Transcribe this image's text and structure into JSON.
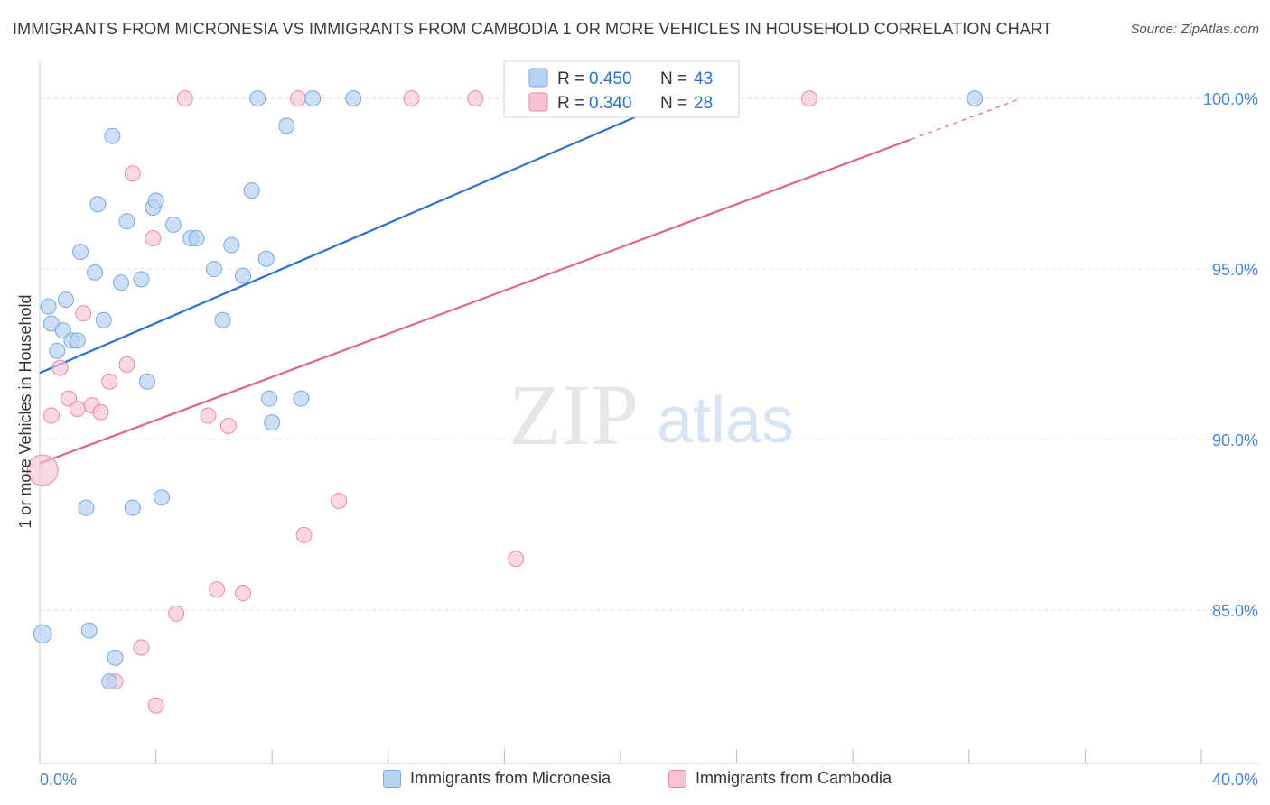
{
  "title": "IMMIGRANTS FROM MICRONESIA VS IMMIGRANTS FROM CAMBODIA 1 OR MORE VEHICLES IN HOUSEHOLD CORRELATION CHART",
  "source": "Source: ZipAtlas.com",
  "watermark": {
    "zip": "ZIP",
    "atlas": "atlas"
  },
  "colors": {
    "blue_fill": "#b8d2f2",
    "blue_stroke": "#7aa8dd",
    "blue_line": "#2a72cc",
    "pink_fill": "#f7c3d4",
    "pink_stroke": "#e88aa8",
    "pink_line": "#e0628c",
    "axis_text": "#4a86cf",
    "grid": "#dddddd"
  },
  "legend": {
    "items": [
      {
        "r_label": "R = ",
        "r_value": "0.450",
        "n_label": "N = ",
        "n_value": "43"
      },
      {
        "r_label": "R = ",
        "r_value": "0.340",
        "n_label": "N = ",
        "n_value": "28"
      }
    ]
  },
  "bottom_legend": [
    "Immigrants from Micronesia",
    "Immigrants from Cambodia"
  ],
  "chart_data": {
    "type": "scatter",
    "title": "IMMIGRANTS FROM MICRONESIA VS IMMIGRANTS FROM CAMBODIA 1 OR MORE VEHICLES IN HOUSEHOLD CORRELATION CHART",
    "xlabel": "",
    "ylabel": "1 or more Vehicles in Household",
    "xlim": [
      0,
      40
    ],
    "ylim": [
      80.5,
      101.3
    ],
    "x_tick_labels": [
      "0.0%",
      "40.0%"
    ],
    "y_ticks": [
      85,
      90,
      95,
      100
    ],
    "y_tick_labels": [
      "85.0%",
      "90.0%",
      "95.0%",
      "100.0%"
    ],
    "grid": true,
    "legend_position": "top-center",
    "series": [
      {
        "name": "Immigrants from Micronesia",
        "r": 0.45,
        "n": 43,
        "trend": {
          "x": [
            0,
            22.0
          ],
          "y": [
            91.95,
            100.0
          ]
        },
        "points": [
          [
            0.1,
            84.3
          ],
          [
            0.3,
            93.9
          ],
          [
            0.4,
            93.4
          ],
          [
            0.6,
            92.6
          ],
          [
            0.8,
            93.2
          ],
          [
            0.9,
            94.1
          ],
          [
            1.1,
            92.9
          ],
          [
            1.3,
            92.9
          ],
          [
            1.4,
            95.5
          ],
          [
            1.6,
            88.0
          ],
          [
            1.7,
            84.4
          ],
          [
            1.9,
            94.9
          ],
          [
            2.0,
            96.9
          ],
          [
            2.2,
            93.5
          ],
          [
            2.4,
            82.9
          ],
          [
            2.5,
            98.9
          ],
          [
            2.6,
            83.6
          ],
          [
            2.8,
            94.6
          ],
          [
            3.0,
            96.4
          ],
          [
            3.2,
            88.0
          ],
          [
            3.5,
            94.7
          ],
          [
            3.7,
            91.7
          ],
          [
            3.9,
            96.8
          ],
          [
            4.0,
            97.0
          ],
          [
            4.2,
            88.3
          ],
          [
            4.6,
            96.3
          ],
          [
            5.2,
            95.9
          ],
          [
            5.4,
            95.9
          ],
          [
            6.0,
            95.0
          ],
          [
            6.3,
            93.5
          ],
          [
            6.6,
            95.7
          ],
          [
            7.0,
            94.8
          ],
          [
            7.3,
            97.3
          ],
          [
            7.5,
            100.0
          ],
          [
            7.8,
            95.3
          ],
          [
            7.9,
            91.2
          ],
          [
            8.0,
            90.5
          ],
          [
            8.5,
            99.2
          ],
          [
            9.0,
            91.2
          ],
          [
            9.4,
            100.0
          ],
          [
            10.8,
            100.0
          ],
          [
            18.5,
            100.0
          ],
          [
            32.2,
            100.0
          ]
        ]
      },
      {
        "name": "Immigrants from Cambodia",
        "r": 0.34,
        "n": 28,
        "trend": {
          "x": [
            0,
            30.0
          ],
          "y": [
            89.3,
            98.8
          ]
        },
        "trend_dashed_extension": {
          "x": [
            30.0,
            33.8
          ],
          "y": [
            98.8,
            100.0
          ]
        },
        "points": [
          [
            0.1,
            89.1
          ],
          [
            0.4,
            90.7
          ],
          [
            0.7,
            92.1
          ],
          [
            1.0,
            91.2
          ],
          [
            1.3,
            90.9
          ],
          [
            1.5,
            93.7
          ],
          [
            1.8,
            91.0
          ],
          [
            2.1,
            90.8
          ],
          [
            2.4,
            91.7
          ],
          [
            2.6,
            82.9
          ],
          [
            3.0,
            92.2
          ],
          [
            3.2,
            97.8
          ],
          [
            3.5,
            83.9
          ],
          [
            3.9,
            95.9
          ],
          [
            4.0,
            82.2
          ],
          [
            4.7,
            84.9
          ],
          [
            5.0,
            100.0
          ],
          [
            5.8,
            90.7
          ],
          [
            6.1,
            85.6
          ],
          [
            6.5,
            90.4
          ],
          [
            7.0,
            85.5
          ],
          [
            8.9,
            100.0
          ],
          [
            9.1,
            87.2
          ],
          [
            10.3,
            88.2
          ],
          [
            12.8,
            100.0
          ],
          [
            15.0,
            100.0
          ],
          [
            16.4,
            86.5
          ],
          [
            26.5,
            100.0
          ]
        ]
      }
    ]
  }
}
